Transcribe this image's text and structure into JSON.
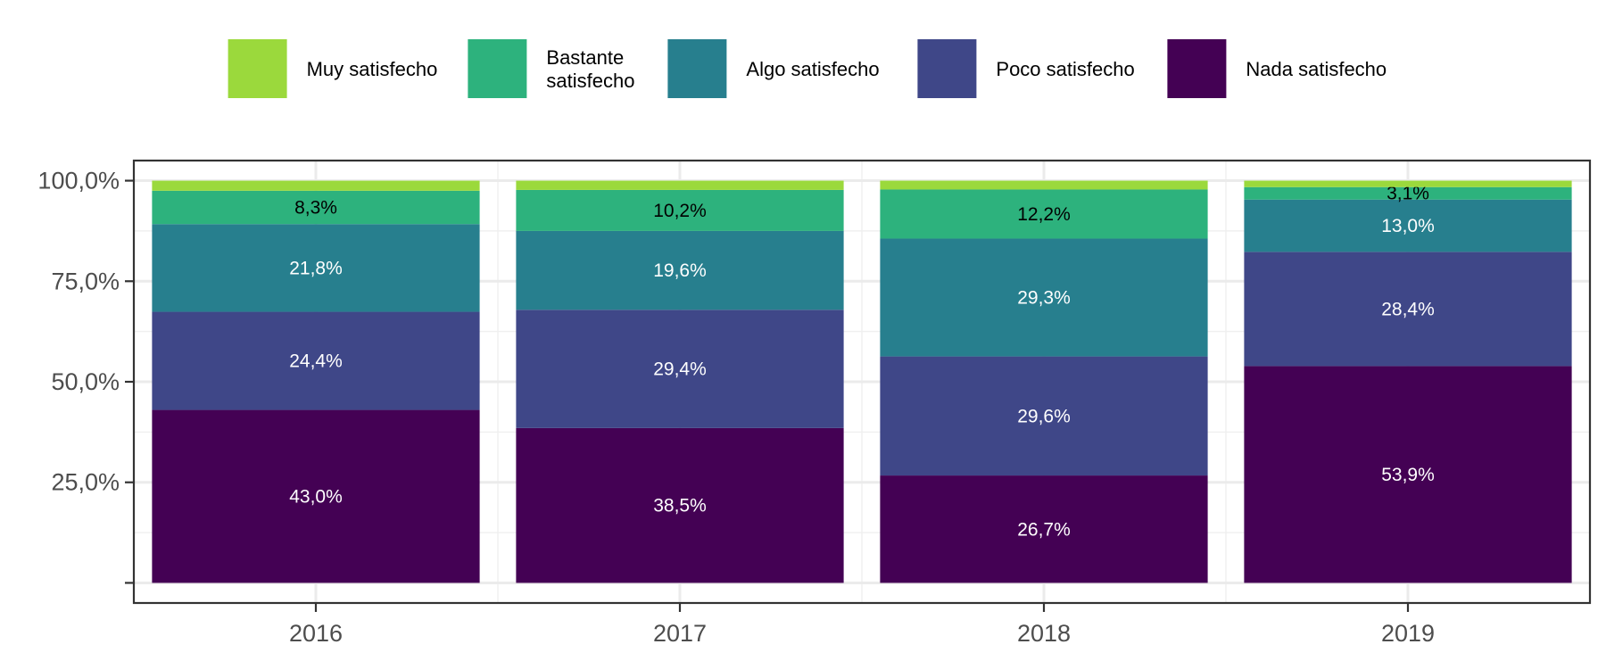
{
  "chart_data": {
    "type": "bar",
    "stacked": true,
    "percent": true,
    "categories": [
      "2016",
      "2017",
      "2018",
      "2019"
    ],
    "series": [
      {
        "name": "Nada satisfecho",
        "color": "#440154",
        "label_color": "#ffffff",
        "values": [
          43.0,
          38.5,
          26.7,
          53.9
        ],
        "labels": [
          "43,0%",
          "38,5%",
          "26,7%",
          "53,9%"
        ]
      },
      {
        "name": "Poco satisfecho",
        "color": "#3f4788",
        "label_color": "#ffffff",
        "values": [
          24.4,
          29.4,
          29.6,
          28.4
        ],
        "labels": [
          "24,4%",
          "29,4%",
          "29,6%",
          "28,4%"
        ]
      },
      {
        "name": "Algo satisfecho",
        "color": "#277f8e",
        "label_color": "#ffffff",
        "values": [
          21.8,
          19.6,
          29.3,
          13.0
        ],
        "labels": [
          "21,8%",
          "19,6%",
          "29,3%",
          "13,0%"
        ]
      },
      {
        "name": "Bastante satisfecho",
        "name_lines": [
          "Bastante",
          "satisfecho"
        ],
        "color": "#2db27d",
        "label_color": "#000000",
        "values": [
          8.3,
          10.2,
          12.2,
          3.1
        ],
        "labels": [
          "8,3%",
          "10,2%",
          "12,2%",
          "3,1%"
        ]
      },
      {
        "name": "Muy satisfecho",
        "color": "#9bd93c",
        "label_color": "#000000",
        "values": [
          2.5,
          2.3,
          2.2,
          1.6
        ],
        "labels": [
          "",
          "",
          "",
          ""
        ]
      }
    ],
    "y_ticks": [
      {
        "value": 25,
        "label": "25,0%"
      },
      {
        "value": 50,
        "label": "50,0%"
      },
      {
        "value": 75,
        "label": "75,0%"
      },
      {
        "value": 100,
        "label": "100,0%"
      }
    ],
    "ylim": [
      -5,
      105
    ],
    "grid": true,
    "legend": {
      "position": "top",
      "order": [
        "Muy satisfecho",
        "Bastante satisfecho",
        "Algo satisfecho",
        "Poco satisfecho",
        "Nada satisfecho"
      ]
    },
    "title": "",
    "xlabel": "",
    "ylabel": ""
  }
}
